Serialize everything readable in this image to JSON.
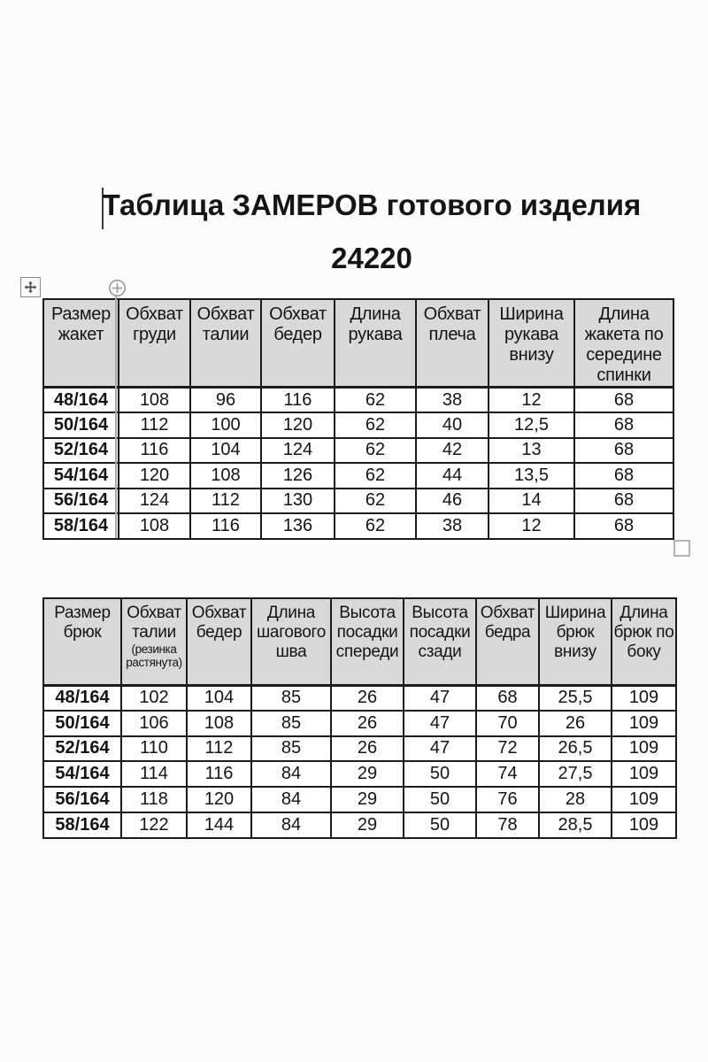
{
  "title": {
    "line1": "Таблица ЗАМЕРОВ готового изделия",
    "line2": "24220"
  },
  "jacket_table": {
    "headers": [
      "Размер жакет",
      "Обхват груди",
      "Обхват талии",
      "Обхват бедер",
      "Длина рукава",
      "Обхват плеча",
      "Ширина рукава внизу",
      "Длина жакета по середине спинки"
    ],
    "rows": [
      [
        "48/164",
        "108",
        "96",
        "116",
        "62",
        "38",
        "12",
        "68"
      ],
      [
        "50/164",
        "112",
        "100",
        "120",
        "62",
        "40",
        "12,5",
        "68"
      ],
      [
        "52/164",
        "116",
        "104",
        "124",
        "62",
        "42",
        "13",
        "68"
      ],
      [
        "54/164",
        "120",
        "108",
        "126",
        "62",
        "44",
        "13,5",
        "68"
      ],
      [
        "56/164",
        "124",
        "112",
        "130",
        "62",
        "46",
        "14",
        "68"
      ],
      [
        "58/164",
        "108",
        "116",
        "136",
        "62",
        "38",
        "12",
        "68"
      ]
    ]
  },
  "pants_table": {
    "headers": [
      "Размер брюк",
      "Обхват талии",
      "Обхват бедер",
      "Длина шагового шва",
      "Высота посадки спереди",
      "Высота посадки сзади",
      "Обхват бедра",
      "Ширина брюк внизу",
      "Длина брюк по боку"
    ],
    "waist_note": "(резинка растянута)",
    "rows": [
      [
        "48/164",
        "102",
        "104",
        "85",
        "26",
        "47",
        "68",
        "25,5",
        "109"
      ],
      [
        "50/164",
        "106",
        "108",
        "85",
        "26",
        "47",
        "70",
        "26",
        "109"
      ],
      [
        "52/164",
        "110",
        "112",
        "85",
        "26",
        "47",
        "72",
        "26,5",
        "109"
      ],
      [
        "54/164",
        "114",
        "116",
        "84",
        "29",
        "50",
        "74",
        "27,5",
        "109"
      ],
      [
        "56/164",
        "118",
        "120",
        "84",
        "29",
        "50",
        "76",
        "28",
        "109"
      ],
      [
        "58/164",
        "122",
        "144",
        "84",
        "29",
        "50",
        "78",
        "28,5",
        "109"
      ]
    ]
  },
  "icons": {
    "move_handle": "four-direction-arrows",
    "anchor": "circled-plus",
    "resize_handle": "small-square"
  },
  "colors": {
    "header_bg": "#d9d9d9",
    "border": "#1b1b1b",
    "accent_gray": "#9a9a9a"
  }
}
